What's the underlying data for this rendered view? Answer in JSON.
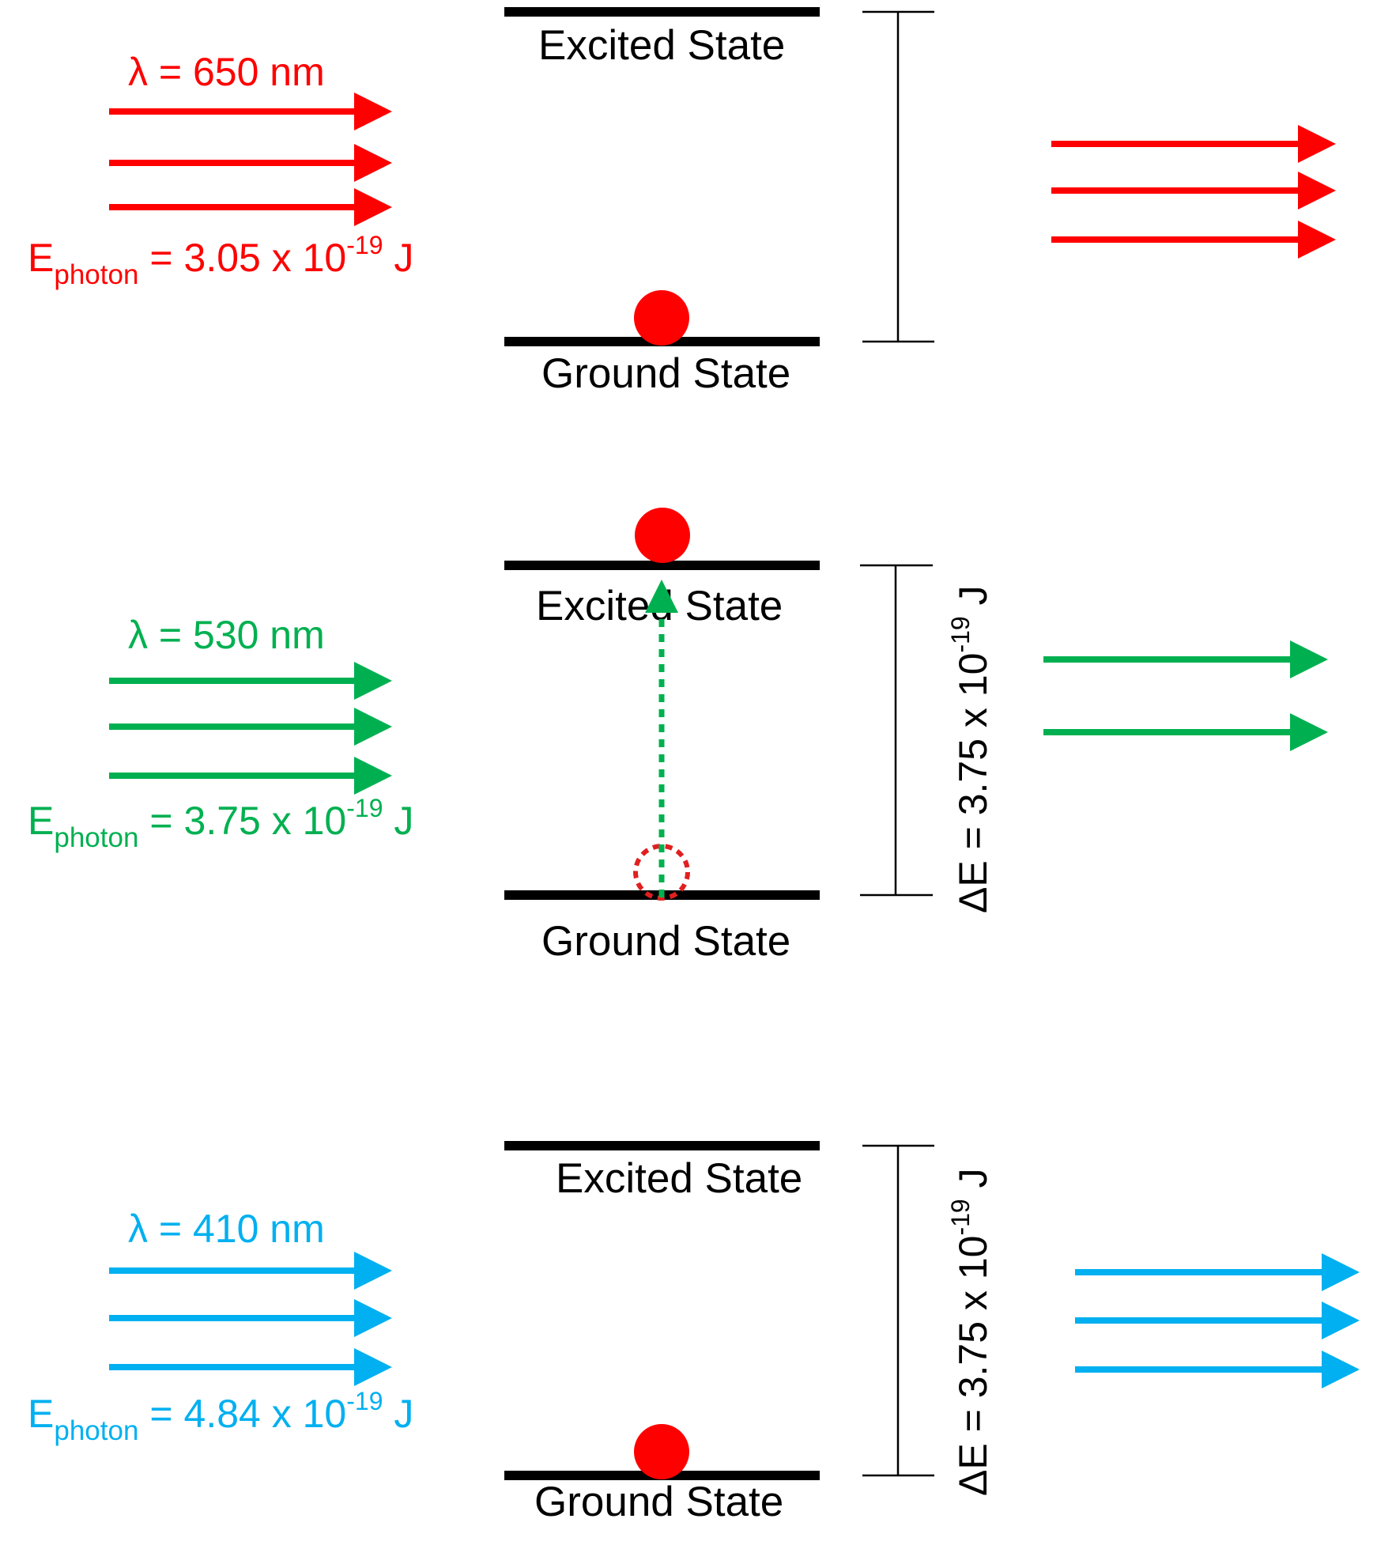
{
  "labels": {
    "excited": "Excited State",
    "ground": "Ground State",
    "e_photon": "E",
    "photon_sub": "photon",
    "eq_prefix": "= ",
    "times_ten": " x 10",
    "exponent": "-19",
    "joule_unit": " J",
    "delta": "ΔE = 3.75 x 10",
    "delta_exponent": "-19",
    "delta_unit": " J"
  },
  "colors": {
    "red": "#ff0000",
    "green": "#00b050",
    "blue": "#00b0f0",
    "black": "#000000"
  },
  "panels": [
    {
      "id": "red",
      "color": "#ff0000",
      "wavelength": "λ = 650 nm",
      "energy_value": "3.05",
      "incoming_arrows": 3,
      "outgoing_arrows": 3,
      "electron_position": "ground",
      "transition": false,
      "gap_label_shown": false
    },
    {
      "id": "green",
      "color": "#00b050",
      "wavelength": "λ = 530 nm",
      "energy_value": "3.75",
      "incoming_arrows": 3,
      "outgoing_arrows": 2,
      "electron_position": "excited",
      "transition": true,
      "gap_label_shown": true
    },
    {
      "id": "blue",
      "color": "#00b0f0",
      "wavelength": "λ = 410 nm",
      "energy_value": "4.84",
      "incoming_arrows": 3,
      "outgoing_arrows": 3,
      "electron_position": "ground",
      "transition": false,
      "gap_label_shown": true
    }
  ]
}
